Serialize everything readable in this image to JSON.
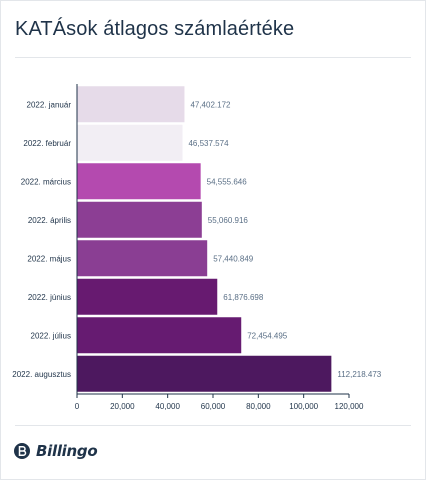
{
  "title": "KATÁsok átlagos számlaértéke",
  "brand": {
    "name": "Billingo",
    "icon": "billingo-logo-icon"
  },
  "chart_data": {
    "type": "bar",
    "orientation": "horizontal",
    "categories": [
      "2022. január",
      "2022. február",
      "2022. március",
      "2022. április",
      "2022. május",
      "2022. június",
      "2022. július",
      "2022. augusztus"
    ],
    "values": [
      47402.172,
      46537.574,
      54555.646,
      55060.916,
      57440.849,
      61876.698,
      72454.495,
      112218.473
    ],
    "value_labels": [
      "47,402.172",
      "46,537.574",
      "54,555.646",
      "55,060.916",
      "57,440.849",
      "61,876.698",
      "72,454.495",
      "112,218.473"
    ],
    "colors": [
      "#e6dbe9",
      "#f2eef4",
      "#b44aaf",
      "#8c3e94",
      "#8a3e93",
      "#671a70",
      "#661b71",
      "#4d185f"
    ],
    "xlim": [
      0,
      120000
    ],
    "xticks": [
      "0",
      "20,000",
      "40,000",
      "60,000",
      "80,000",
      "100,000",
      "120,000"
    ],
    "xtick_values": [
      0,
      20000,
      40000,
      60000,
      80000,
      100000,
      120000
    ],
    "grid": false,
    "legend": "none"
  }
}
